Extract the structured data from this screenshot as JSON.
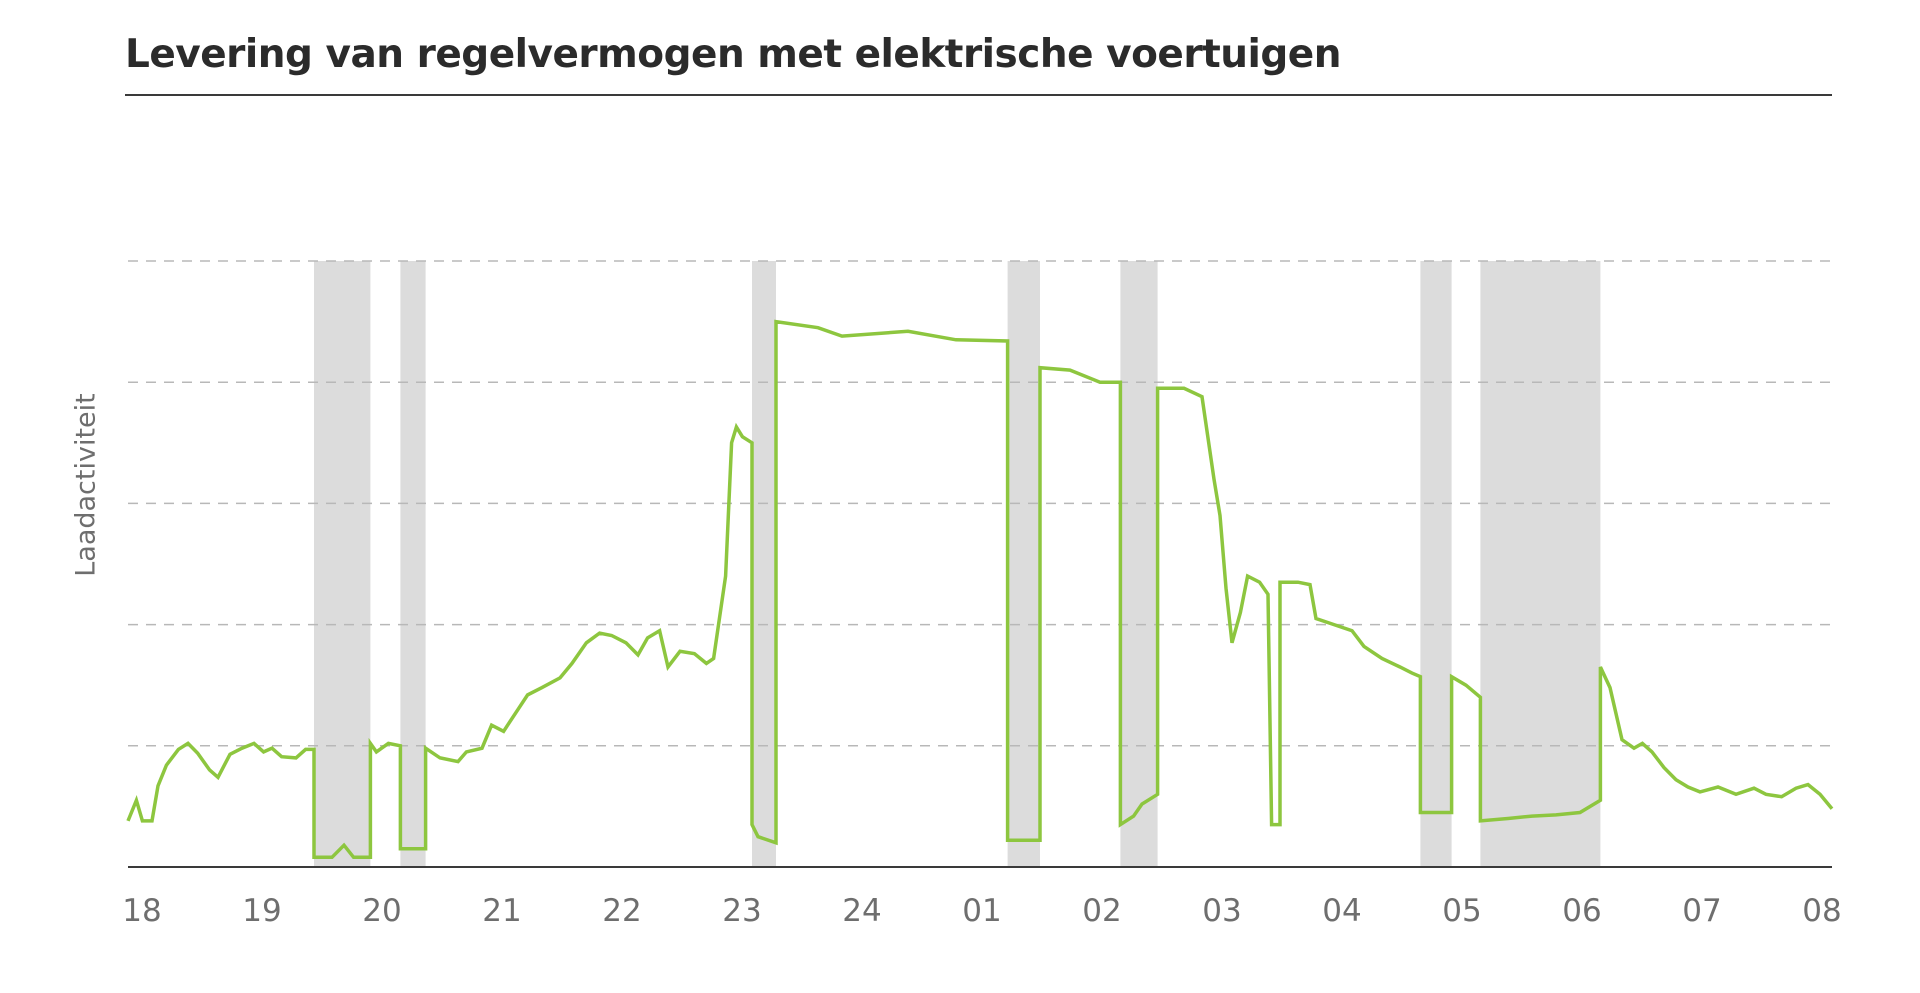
{
  "chart_data": {
    "type": "line",
    "title": "Levering van regelvermogen met elektrische voertuigen",
    "xlabel": "",
    "ylabel": "Laadactiviteit",
    "x_ticks": [
      "18",
      "19",
      "20",
      "21",
      "22",
      "23",
      "24",
      "01",
      "02",
      "03",
      "04",
      "05",
      "06",
      "07",
      "08"
    ],
    "x_range_hours": [
      18,
      32.2
    ],
    "y_range": [
      0,
      5
    ],
    "y_gridlines": [
      1,
      2,
      3,
      4,
      5
    ],
    "grid": "horizontal-dashed",
    "shaded_intervals_hours": [
      [
        19.55,
        20.02
      ],
      [
        20.27,
        20.48
      ],
      [
        23.2,
        23.4
      ],
      [
        25.33,
        25.6
      ],
      [
        26.27,
        26.58
      ],
      [
        28.77,
        29.03
      ],
      [
        29.27,
        30.27
      ]
    ],
    "series": [
      {
        "color": "#8dc63f",
        "points": [
          [
            18.0,
            0.38
          ],
          [
            18.07,
            0.55
          ],
          [
            18.12,
            0.38
          ],
          [
            18.2,
            0.38
          ],
          [
            18.25,
            0.67
          ],
          [
            18.32,
            0.84
          ],
          [
            18.42,
            0.97
          ],
          [
            18.5,
            1.02
          ],
          [
            18.58,
            0.94
          ],
          [
            18.68,
            0.8
          ],
          [
            18.75,
            0.74
          ],
          [
            18.85,
            0.93
          ],
          [
            18.95,
            0.98
          ],
          [
            19.05,
            1.02
          ],
          [
            19.13,
            0.95
          ],
          [
            19.2,
            0.98
          ],
          [
            19.28,
            0.91
          ],
          [
            19.4,
            0.9
          ],
          [
            19.48,
            0.97
          ],
          [
            19.55,
            0.97
          ],
          [
            19.55,
            0.08
          ],
          [
            19.7,
            0.08
          ],
          [
            19.8,
            0.18
          ],
          [
            19.88,
            0.08
          ],
          [
            20.02,
            0.08
          ],
          [
            20.02,
            1.02
          ],
          [
            20.07,
            0.95
          ],
          [
            20.17,
            1.02
          ],
          [
            20.27,
            1.0
          ],
          [
            20.27,
            0.15
          ],
          [
            20.48,
            0.15
          ],
          [
            20.48,
            0.98
          ],
          [
            20.6,
            0.9
          ],
          [
            20.75,
            0.87
          ],
          [
            20.82,
            0.95
          ],
          [
            20.95,
            0.98
          ],
          [
            21.03,
            1.17
          ],
          [
            21.13,
            1.12
          ],
          [
            21.25,
            1.3
          ],
          [
            21.33,
            1.42
          ],
          [
            21.45,
            1.48
          ],
          [
            21.6,
            1.56
          ],
          [
            21.7,
            1.68
          ],
          [
            21.82,
            1.85
          ],
          [
            21.93,
            1.93
          ],
          [
            22.03,
            1.91
          ],
          [
            22.15,
            1.85
          ],
          [
            22.25,
            1.75
          ],
          [
            22.33,
            1.89
          ],
          [
            22.43,
            1.95
          ],
          [
            22.5,
            1.65
          ],
          [
            22.6,
            1.78
          ],
          [
            22.72,
            1.76
          ],
          [
            22.82,
            1.68
          ],
          [
            22.88,
            1.72
          ],
          [
            22.98,
            2.4
          ],
          [
            23.03,
            3.5
          ],
          [
            23.07,
            3.63
          ],
          [
            23.12,
            3.55
          ],
          [
            23.2,
            3.5
          ],
          [
            23.2,
            0.35
          ],
          [
            23.25,
            0.25
          ],
          [
            23.4,
            0.2
          ],
          [
            23.4,
            4.5
          ],
          [
            23.75,
            4.45
          ],
          [
            23.95,
            4.38
          ],
          [
            24.5,
            4.42
          ],
          [
            24.9,
            4.35
          ],
          [
            25.33,
            4.34
          ],
          [
            25.33,
            0.22
          ],
          [
            25.6,
            0.22
          ],
          [
            25.6,
            4.12
          ],
          [
            25.85,
            4.1
          ],
          [
            26.1,
            4.0
          ],
          [
            26.27,
            4.0
          ],
          [
            26.27,
            0.35
          ],
          [
            26.38,
            0.42
          ],
          [
            26.45,
            0.52
          ],
          [
            26.58,
            0.6
          ],
          [
            26.58,
            3.95
          ],
          [
            26.8,
            3.95
          ],
          [
            26.95,
            3.88
          ],
          [
            27.05,
            3.2
          ],
          [
            27.1,
            2.9
          ],
          [
            27.15,
            2.3
          ],
          [
            27.2,
            1.85
          ],
          [
            27.27,
            2.1
          ],
          [
            27.33,
            2.4
          ],
          [
            27.43,
            2.35
          ],
          [
            27.5,
            2.25
          ],
          [
            27.53,
            0.35
          ],
          [
            27.6,
            0.35
          ],
          [
            27.6,
            2.35
          ],
          [
            27.75,
            2.35
          ],
          [
            27.85,
            2.33
          ],
          [
            27.9,
            2.05
          ],
          [
            28.05,
            2.0
          ],
          [
            28.2,
            1.95
          ],
          [
            28.3,
            1.82
          ],
          [
            28.45,
            1.72
          ],
          [
            28.6,
            1.65
          ],
          [
            28.7,
            1.6
          ],
          [
            28.77,
            1.57
          ],
          [
            28.77,
            0.45
          ],
          [
            29.03,
            0.45
          ],
          [
            29.03,
            1.57
          ],
          [
            29.15,
            1.5
          ],
          [
            29.27,
            1.4
          ],
          [
            29.27,
            0.38
          ],
          [
            29.5,
            0.4
          ],
          [
            29.7,
            0.42
          ],
          [
            29.9,
            0.43
          ],
          [
            30.1,
            0.45
          ],
          [
            30.27,
            0.55
          ],
          [
            30.27,
            1.65
          ],
          [
            30.35,
            1.48
          ],
          [
            30.45,
            1.05
          ],
          [
            30.55,
            0.98
          ],
          [
            30.62,
            1.02
          ],
          [
            30.7,
            0.95
          ],
          [
            30.8,
            0.82
          ],
          [
            30.9,
            0.72
          ],
          [
            31.0,
            0.66
          ],
          [
            31.1,
            0.62
          ],
          [
            31.25,
            0.66
          ],
          [
            31.4,
            0.6
          ],
          [
            31.55,
            0.65
          ],
          [
            31.65,
            0.6
          ],
          [
            31.78,
            0.58
          ],
          [
            31.9,
            0.65
          ],
          [
            32.0,
            0.68
          ],
          [
            32.1,
            0.6
          ],
          [
            32.2,
            0.48
          ]
        ]
      }
    ]
  }
}
